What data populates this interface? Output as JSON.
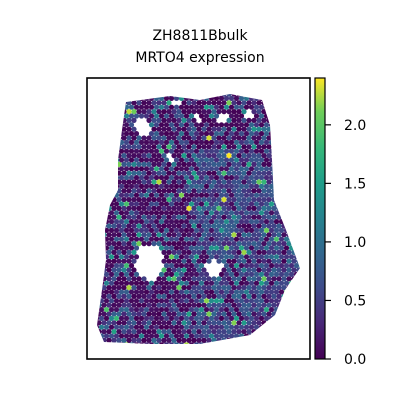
{
  "chart_data": {
    "type": "heatmap",
    "title_lines": [
      "ZH8811Bbulk",
      "MRTO4 expression"
    ],
    "xlabel": "",
    "ylabel": "",
    "grid": false,
    "colormap": "viridis",
    "colorbar": {
      "range": [
        0.0,
        2.4
      ],
      "ticks": [
        0.0,
        0.5,
        1.0,
        1.5,
        2.0
      ],
      "tick_labels": [
        "0.0",
        "0.5",
        "1.0",
        "1.5",
        "2.0"
      ]
    },
    "values_summary": {
      "min": 0.0,
      "max": 2.4,
      "typical": 0.4
    }
  }
}
